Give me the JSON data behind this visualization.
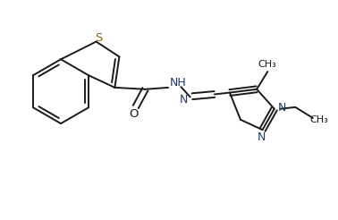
{
  "bg_color": "#ffffff",
  "line_color": "#1a1a1a",
  "heteroatom_color": "#1a3a6e",
  "S_color": "#8B6914",
  "figsize": [
    3.78,
    2.46
  ],
  "dpi": 100,
  "lw": 1.4,
  "xlim": [
    0,
    10
  ],
  "ylim": [
    0,
    6.5
  ]
}
